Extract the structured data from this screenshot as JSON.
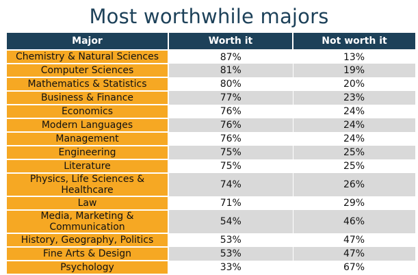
{
  "title": "Most worthwhile majors",
  "colors": {
    "header_bg": "#1d4159",
    "header_text": "#ffffff",
    "major_bg": "#f6a823",
    "stripe_bg": "#d9d9d9",
    "title_color": "#1d4159"
  },
  "chart_data": {
    "type": "table",
    "title": "Most worthwhile majors",
    "columns": [
      "Major",
      "Worth it",
      "Not worth it"
    ],
    "rows": [
      {
        "major": "Chemistry & Natural Sciences",
        "worth": "87%",
        "not_worth": "13%"
      },
      {
        "major": "Computer Sciences",
        "worth": "81%",
        "not_worth": "19%"
      },
      {
        "major": "Mathematics & Statistics",
        "worth": "80%",
        "not_worth": "20%"
      },
      {
        "major": "Business & Finance",
        "worth": "77%",
        "not_worth": "23%"
      },
      {
        "major": "Economics",
        "worth": "76%",
        "not_worth": "24%"
      },
      {
        "major": "Modern Languages",
        "worth": "76%",
        "not_worth": "24%"
      },
      {
        "major": "Management",
        "worth": "76%",
        "not_worth": "24%"
      },
      {
        "major": "Engineering",
        "worth": "75%",
        "not_worth": "25%"
      },
      {
        "major": "Literature",
        "worth": "75%",
        "not_worth": "25%"
      },
      {
        "major": "Physics, Life Sciences & Healthcare",
        "worth": "74%",
        "not_worth": "26%"
      },
      {
        "major": "Law",
        "worth": "71%",
        "not_worth": "29%"
      },
      {
        "major": "Media, Marketing & Communication",
        "worth": "54%",
        "not_worth": "46%"
      },
      {
        "major": "History, Geography, Politics",
        "worth": "53%",
        "not_worth": "47%"
      },
      {
        "major": "Fine Arts & Design",
        "worth": "53%",
        "not_worth": "47%"
      },
      {
        "major": "Psychology",
        "worth": "33%",
        "not_worth": "67%"
      }
    ]
  }
}
